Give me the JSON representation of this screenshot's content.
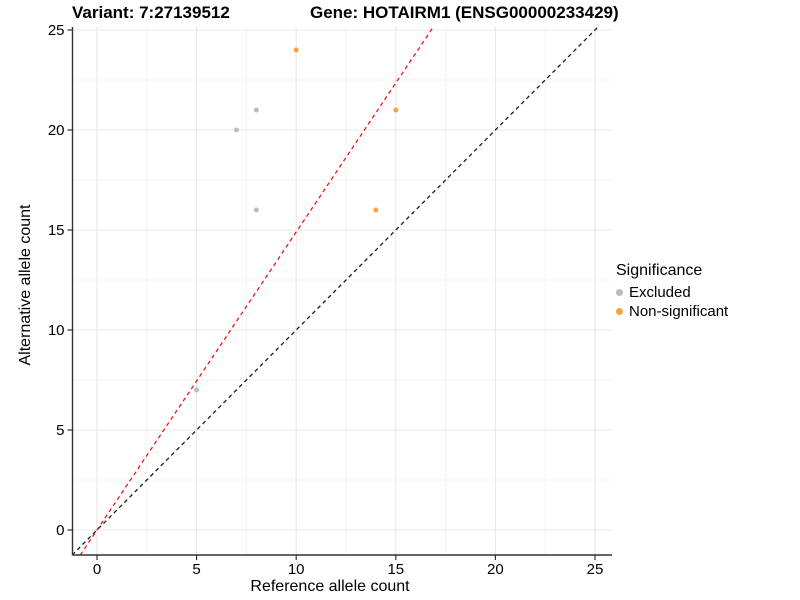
{
  "titles": {
    "variant": "Variant: 7:27139512",
    "gene": "Gene: HOTAIRM1 (ENSG00000233429)"
  },
  "axes": {
    "x": {
      "label": "Reference allele count"
    },
    "y": {
      "label": "Alternative allele count"
    }
  },
  "legend": {
    "title": "Significance",
    "items": [
      {
        "label": "Excluded",
        "color": "#BDBDBD"
      },
      {
        "label": "Non-significant",
        "color": "#F8A33B"
      }
    ]
  },
  "colors": {
    "grid_major": "#E8E8E8",
    "grid_minor": "#F3F3F3",
    "axis_line": "#333333",
    "tick_text": "#000000",
    "identity_line": "#1A1A1A",
    "ratio_line": "#F01414"
  },
  "chart_data": {
    "type": "scatter",
    "title": "Variant: 7:27139512 / Gene: HOTAIRM1 (ENSG00000233429)",
    "xlabel": "Reference allele count",
    "ylabel": "Alternative allele count",
    "xlim": [
      0,
      25
    ],
    "ylim": [
      0,
      25
    ],
    "x_ticks": [
      0,
      5,
      10,
      15,
      20,
      25
    ],
    "y_ticks": [
      0,
      5,
      10,
      15,
      20,
      25
    ],
    "grid": "major+minor",
    "legend_position": "right",
    "legend_title": "Significance",
    "series": [
      {
        "name": "Excluded",
        "color": "#BDBDBD",
        "points": [
          [
            7,
            20
          ],
          [
            8,
            21
          ],
          [
            8,
            16
          ],
          [
            5,
            7
          ]
        ]
      },
      {
        "name": "Non-significant",
        "color": "#F8A33B",
        "points": [
          [
            10,
            24
          ],
          [
            15,
            21
          ],
          [
            14,
            16
          ]
        ]
      }
    ],
    "lines": [
      {
        "name": "identity-line",
        "slope": 1,
        "intercept": 0,
        "color": "#1A1A1A",
        "dash": true
      },
      {
        "name": "expected-ratio-line",
        "slope": 1.49,
        "intercept": 0,
        "color": "#F01414",
        "dash": true
      }
    ]
  }
}
